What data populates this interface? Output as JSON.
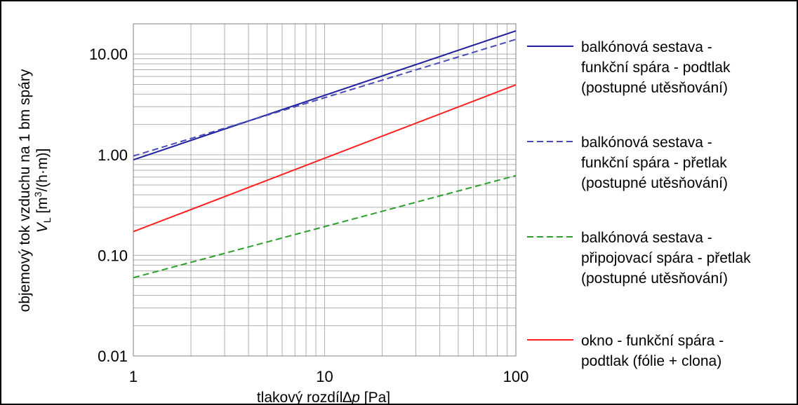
{
  "chart_data": {
    "type": "line",
    "x_scale": "log",
    "y_scale": "log",
    "xlim": [
      1,
      100
    ],
    "ylim": [
      0.01,
      20
    ],
    "grid": true,
    "legend_position": "right",
    "xlabel": "tlakový rozdíl∆p [Pa]",
    "xlabel_parts": {
      "before": "tlakový rozdíl∆",
      "symbol": "p",
      "unit": " [Pa]"
    },
    "ylabel_line1": "objemový tok vzduchu na 1 bm spáry",
    "ylabel_line2": {
      "symbol": "V",
      "subscript": "L",
      "unit_pre": " [m",
      "unit_sup": "3",
      "unit_post": "/(h·m)]"
    },
    "x_ticks": [
      {
        "value": 1,
        "label": "1"
      },
      {
        "value": 10,
        "label": "10"
      },
      {
        "value": 100,
        "label": "100"
      }
    ],
    "y_ticks": [
      {
        "value": 0.01,
        "label": "0.01"
      },
      {
        "value": 0.1,
        "label": "0.10"
      },
      {
        "value": 1,
        "label": "1.00"
      },
      {
        "value": 10,
        "label": "10.00"
      }
    ],
    "series": [
      {
        "name": "balkónová sestava - funkční spára - podtlak (postupné utěsňování)",
        "legend_lines": [
          "balkónová sestava -",
          "funkční spára - podtlak",
          "(postupné utěsňování)"
        ],
        "color": "#1f1f9e",
        "dash": "solid",
        "x": [
          1,
          100
        ],
        "y": [
          0.89,
          17.0
        ]
      },
      {
        "name": "balkónová sestava - funkční spára - přetlak (postupné utěsňování)",
        "legend_lines": [
          "balkónová sestava -",
          "funkční spára - přetlak",
          "(postupné utěsňování)"
        ],
        "color": "#4a4ab8",
        "dash": "dashed",
        "x": [
          1,
          100
        ],
        "y": [
          0.97,
          14.0
        ]
      },
      {
        "name": "balkónová sestava - připojovací spára - přetlak (postupné utěsňování)",
        "legend_lines": [
          "balkónová sestava -",
          "připojovací spára - přetlak",
          "(postupné utěsňování)"
        ],
        "color": "#2ca02c",
        "dash": "dashed",
        "x": [
          1,
          100
        ],
        "y": [
          0.06,
          0.62
        ]
      },
      {
        "name": "okno - funkční spára - podtlak (fólie + clona)",
        "legend_lines": [
          "okno - funkční spára -",
          "podtlak (fólie + clona)"
        ],
        "color": "#ff2020",
        "dash": "solid",
        "x": [
          1,
          100
        ],
        "y": [
          0.172,
          4.95
        ]
      }
    ]
  }
}
